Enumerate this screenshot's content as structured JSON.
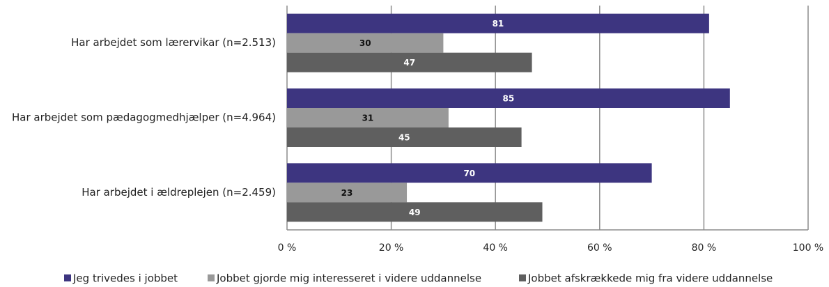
{
  "chart_data": {
    "type": "bar",
    "orientation": "horizontal",
    "categories": [
      "Har arbejdet som lærervikar (n=2.513)",
      "Har arbejdet som pædagogmedhjælper (n=4.964)",
      "Har arbejdet i ældreplejen (n=2.459)"
    ],
    "series": [
      {
        "name": "Jeg trivedes i jobbet",
        "color": "#3d3580",
        "values": [
          81,
          85,
          70
        ]
      },
      {
        "name": "Jobbet gjorde mig interesseret i videre uddannelse",
        "color": "#999999",
        "values": [
          30,
          31,
          23
        ]
      },
      {
        "name": "Jobbet afskrækkede mig fra videre uddannelse",
        "color": "#5f5f5f",
        "values": [
          47,
          45,
          49
        ]
      }
    ],
    "xlim": [
      0,
      100
    ],
    "xticks": [
      {
        "value": 0,
        "label": "0 %"
      },
      {
        "value": 20,
        "label": "20 %"
      },
      {
        "value": 40,
        "label": "40 %"
      },
      {
        "value": 60,
        "label": "60 %"
      },
      {
        "value": 80,
        "label": "80 %"
      },
      {
        "value": 100,
        "label": "100 %"
      }
    ],
    "grid": true,
    "legend": "bottom"
  }
}
